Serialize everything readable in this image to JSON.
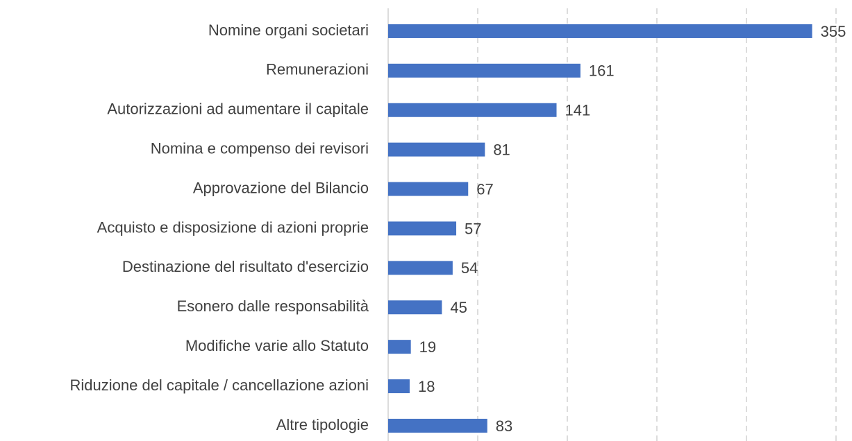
{
  "chart_data": {
    "type": "hbar",
    "categories": [
      "Nomine organi societari",
      "Remunerazioni",
      "Autorizzazioni ad aumentare il capitale",
      "Nomina e compenso dei revisori",
      "Approvazione del Bilancio",
      "Acquisto e disposizione di azioni proprie",
      "Destinazione del risultato d'esercizio",
      "Esonero dalle responsabilità",
      "Modifiche varie allo Statuto",
      "Riduzione del capitale / cancellazione azioni",
      "Altre tipologie"
    ],
    "values": [
      355,
      161,
      141,
      81,
      67,
      57,
      54,
      45,
      19,
      18,
      83
    ],
    "color": "#4472c4",
    "xlim": [
      0,
      375
    ],
    "xticks": [
      75,
      150,
      225,
      300,
      375
    ],
    "grid": true
  }
}
